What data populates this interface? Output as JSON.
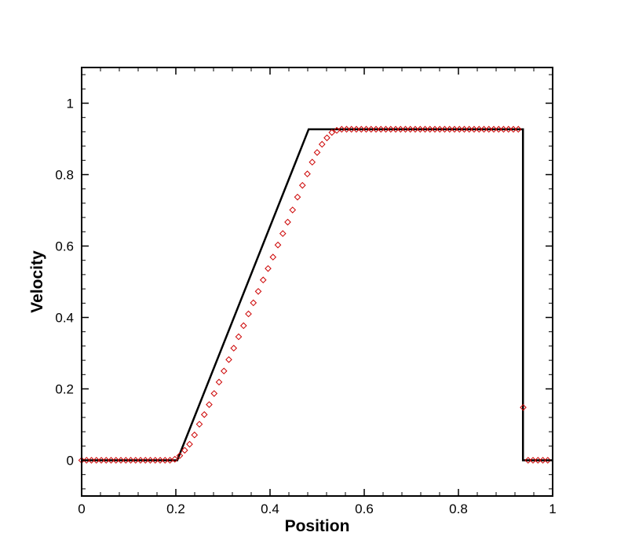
{
  "chart_data": {
    "type": "line",
    "xlabel": "Position",
    "ylabel": "Velocity",
    "xlim": [
      0,
      1
    ],
    "ylim": [
      -0.1,
      1.1
    ],
    "grid": false,
    "legend": "none",
    "x_ticks": [
      0,
      0.2,
      0.4,
      0.6,
      0.8,
      1
    ],
    "y_ticks": [
      0,
      0.2,
      0.4,
      0.6,
      0.8,
      1
    ],
    "x_tick_labels": [
      "0",
      "0.2",
      "0.4",
      "0.6",
      "0.8",
      "1"
    ],
    "y_tick_labels": [
      "0",
      "0.2",
      "0.4",
      "0.6",
      "0.8",
      "1"
    ],
    "series": [
      {
        "kind": "line",
        "color": "#000000",
        "x": [
          0,
          0.203,
          0.482,
          0.937,
          0.937,
          1
        ],
        "y": [
          0,
          0,
          0.927,
          0.927,
          0,
          0
        ]
      },
      {
        "kind": "markers",
        "marker": "diamond",
        "color": "#cc0000",
        "x": [
          0.0,
          0.0104,
          0.0208,
          0.0313,
          0.0417,
          0.0521,
          0.0625,
          0.0729,
          0.0833,
          0.0938,
          0.1042,
          0.1146,
          0.125,
          0.1354,
          0.1458,
          0.1563,
          0.1667,
          0.1771,
          0.1875,
          0.1979,
          0.2083,
          0.2188,
          0.2292,
          0.2396,
          0.25,
          0.2604,
          0.2708,
          0.2813,
          0.2917,
          0.3021,
          0.3125,
          0.3229,
          0.3333,
          0.3438,
          0.3542,
          0.3646,
          0.375,
          0.3854,
          0.3958,
          0.4063,
          0.4167,
          0.4271,
          0.4375,
          0.4479,
          0.4583,
          0.4688,
          0.4792,
          0.4896,
          0.5,
          0.5104,
          0.5208,
          0.5313,
          0.5417,
          0.5521,
          0.5625,
          0.5729,
          0.5833,
          0.5938,
          0.6042,
          0.6146,
          0.625,
          0.6354,
          0.6458,
          0.6563,
          0.6667,
          0.6771,
          0.6875,
          0.6979,
          0.7083,
          0.7188,
          0.7292,
          0.7396,
          0.75,
          0.7604,
          0.7708,
          0.7813,
          0.7917,
          0.8021,
          0.8125,
          0.8229,
          0.8333,
          0.8438,
          0.8542,
          0.8646,
          0.875,
          0.8854,
          0.8958,
          0.9063,
          0.9167,
          0.9271,
          0.9375,
          0.9479,
          0.9583,
          0.9688,
          0.9792,
          0.9896
        ],
        "y": [
          0,
          0,
          0,
          0,
          0,
          0,
          0,
          0,
          0,
          0,
          0,
          0,
          0,
          0,
          0,
          0,
          0,
          0,
          0,
          0.003,
          0.013,
          0.028,
          0.045,
          0.071,
          0.101,
          0.128,
          0.156,
          0.187,
          0.219,
          0.25,
          0.282,
          0.314,
          0.346,
          0.377,
          0.41,
          0.441,
          0.473,
          0.505,
          0.537,
          0.569,
          0.603,
          0.635,
          0.667,
          0.701,
          0.737,
          0.77,
          0.802,
          0.835,
          0.862,
          0.885,
          0.903,
          0.918,
          0.924,
          0.927,
          0.927,
          0.927,
          0.927,
          0.927,
          0.927,
          0.927,
          0.927,
          0.927,
          0.927,
          0.927,
          0.927,
          0.927,
          0.927,
          0.927,
          0.927,
          0.927,
          0.927,
          0.927,
          0.927,
          0.927,
          0.927,
          0.927,
          0.927,
          0.927,
          0.927,
          0.927,
          0.927,
          0.927,
          0.927,
          0.927,
          0.927,
          0.927,
          0.927,
          0.927,
          0.927,
          0.927,
          0.148,
          0,
          0,
          0,
          0,
          0
        ]
      }
    ]
  }
}
